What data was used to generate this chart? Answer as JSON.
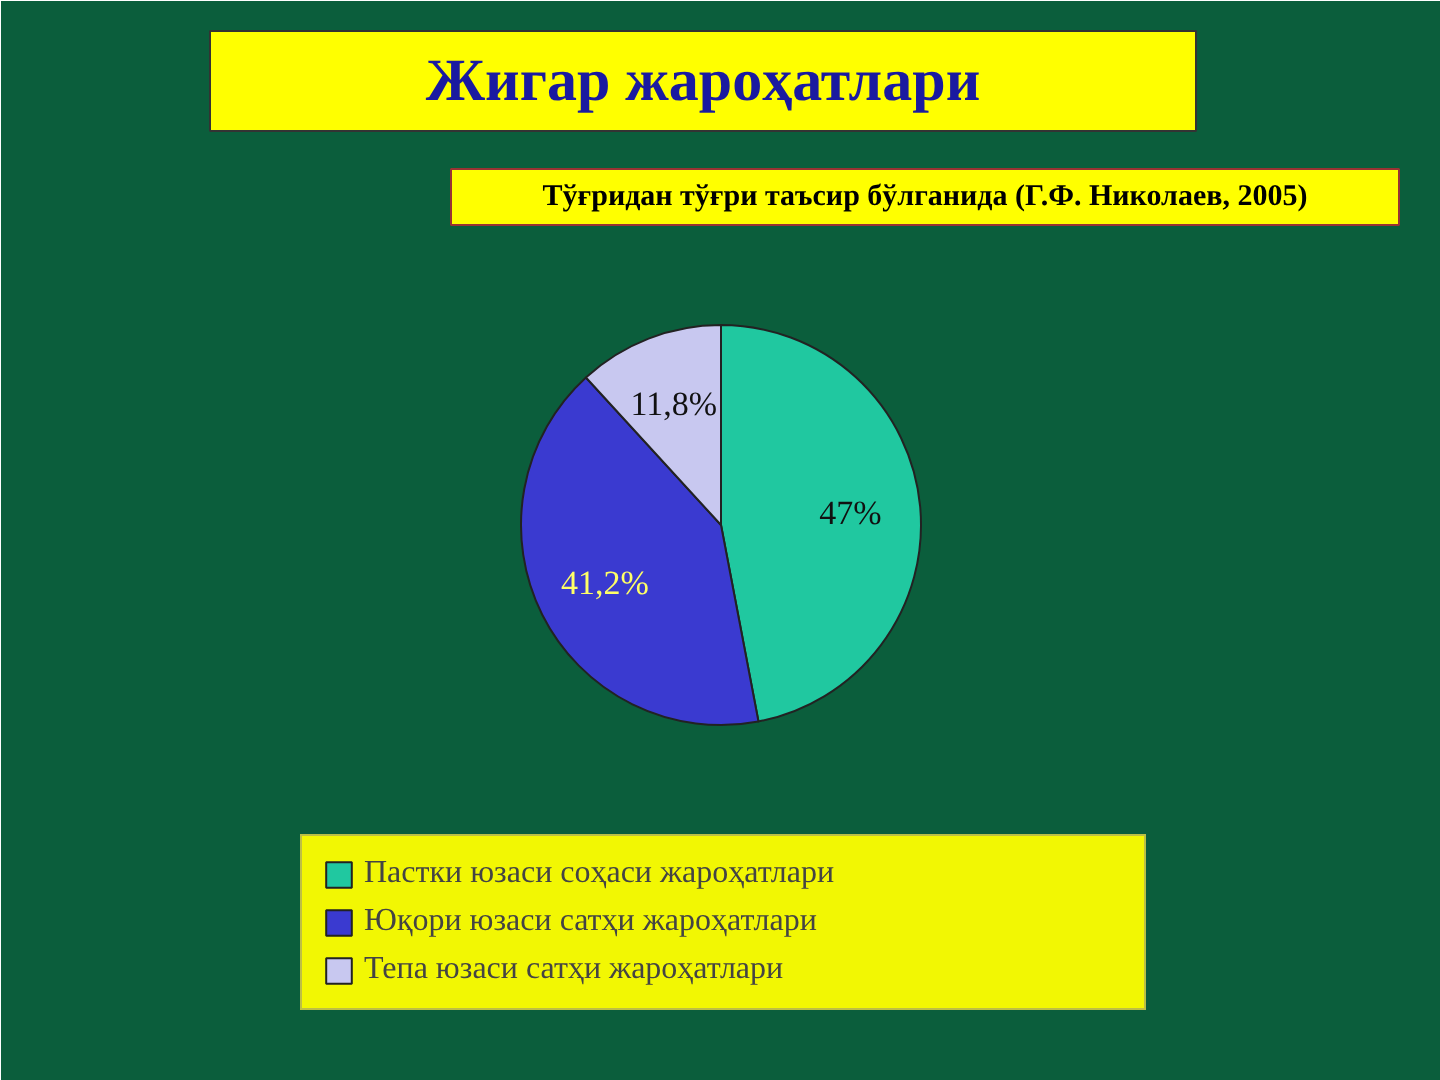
{
  "chart_data": {
    "type": "pie",
    "title": "Жигар жароҳатлари",
    "subtitle": "Тўғридан тўғри таъсир бўлганида (Г.Ф. Николаев, 2005)",
    "categories": [
      "Пастки юзаси соҳаси жароҳатлари",
      "Юқори юзаси сатҳи жароҳатлари",
      "Тепа юзаси сатҳи жароҳатлари"
    ],
    "values": [
      47,
      41.2,
      11.8
    ],
    "colors": [
      "#20c8a0",
      "#3a3ad0",
      "#c8c8f0"
    ],
    "value_labels": [
      "47%",
      "41,2%",
      "11,8%"
    ],
    "legend": "bottom"
  }
}
